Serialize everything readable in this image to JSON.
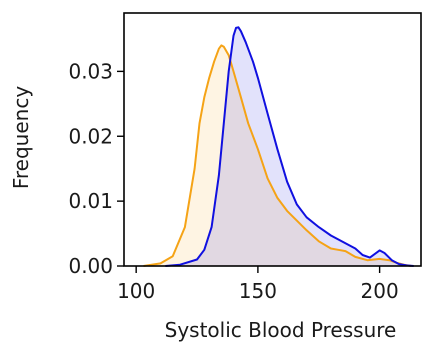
{
  "chart_data": {
    "type": "area",
    "title": "",
    "xlabel": "Systolic Blood Pressure",
    "ylabel": "Frequency",
    "xlim": [
      95,
      217
    ],
    "ylim": [
      0,
      0.039
    ],
    "xticks": [
      100,
      150,
      200
    ],
    "xtick_labels": [
      "100",
      "150",
      "200"
    ],
    "yticks": [
      0.0,
      0.01,
      0.02,
      0.03
    ],
    "ytick_labels": [
      "0.00",
      "0.01",
      "0.02",
      "0.03"
    ],
    "grid": false,
    "legend": false,
    "series": [
      {
        "color": "#f5a316",
        "fill": "#fdf2dc",
        "x": [
          103,
          110,
          115,
          120,
          124,
          126,
          128,
          130,
          132,
          134,
          135,
          136,
          138,
          140,
          143,
          146,
          150,
          154,
          158,
          162,
          166,
          170,
          175,
          180,
          183,
          186,
          190,
          195,
          200,
          204,
          207,
          210,
          213
        ],
        "y": [
          0,
          0.0004,
          0.0015,
          0.006,
          0.015,
          0.022,
          0.026,
          0.029,
          0.0315,
          0.0335,
          0.034,
          0.0338,
          0.0325,
          0.03,
          0.026,
          0.022,
          0.018,
          0.0135,
          0.0105,
          0.0085,
          0.007,
          0.0055,
          0.0038,
          0.0027,
          0.0025,
          0.0023,
          0.0014,
          0.0009,
          0.0011,
          0.0009,
          0.0005,
          0.0002,
          0
        ]
      },
      {
        "color": "#1010e0",
        "fill": "#e3e2f6",
        "x": [
          112,
          118,
          125,
          128,
          131,
          134,
          136,
          138,
          140,
          141,
          142,
          143,
          145,
          148,
          150,
          154,
          158,
          162,
          166,
          170,
          175,
          180,
          185,
          190,
          193,
          196,
          200,
          202,
          205,
          208,
          211,
          214
        ],
        "y": [
          0,
          0.0002,
          0.001,
          0.0025,
          0.006,
          0.014,
          0.022,
          0.03,
          0.0355,
          0.0367,
          0.0368,
          0.0362,
          0.0345,
          0.0315,
          0.029,
          0.0235,
          0.018,
          0.013,
          0.0095,
          0.0075,
          0.006,
          0.0047,
          0.0037,
          0.0027,
          0.0017,
          0.0013,
          0.0024,
          0.002,
          0.0009,
          0.0003,
          0.0001,
          0
        ]
      }
    ]
  }
}
